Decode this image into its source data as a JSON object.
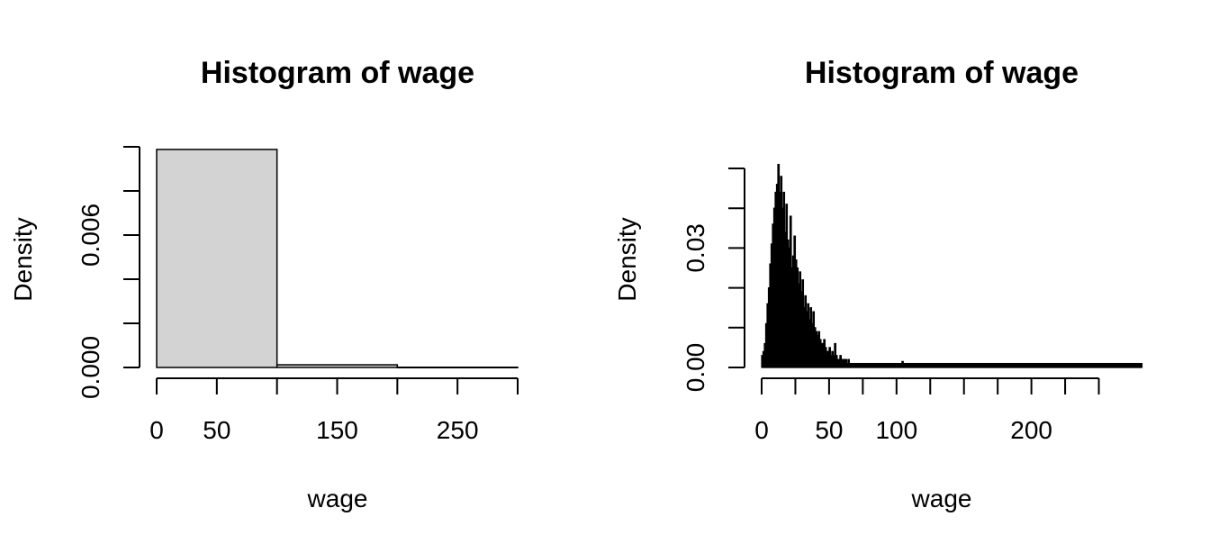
{
  "chart_data": [
    {
      "type": "bar",
      "title": "Histogram of wage",
      "xlabel": "wage",
      "ylabel": "Density",
      "xlim": [
        0,
        300
      ],
      "ylim": [
        0,
        0.01
      ],
      "x_ticks": [
        0,
        50,
        100,
        150,
        200,
        250,
        300
      ],
      "x_tick_labels": [
        "0",
        "50",
        "150",
        "250"
      ],
      "x_tick_labels_at": [
        0,
        50,
        150,
        250
      ],
      "y_ticks": [
        0,
        0.002,
        0.004,
        0.006,
        0.008,
        0.01
      ],
      "y_tick_labels": [
        "0.000",
        "0.006"
      ],
      "y_tick_labels_at": [
        0,
        0.006
      ],
      "bar_fill": "#d3d3d3",
      "bins": [
        {
          "from": 0,
          "to": 100,
          "density": 0.00988
        },
        {
          "from": 100,
          "to": 200,
          "density": 0.00012
        },
        {
          "from": 200,
          "to": 300,
          "density": 1e-05
        }
      ]
    },
    {
      "type": "bar",
      "title": "Histogram of wage",
      "xlabel": "wage",
      "ylabel": "Density",
      "xlim": [
        0,
        267
      ],
      "ylim": [
        0,
        0.05
      ],
      "x_ticks": [
        0,
        25,
        50,
        75,
        100,
        125,
        150,
        175,
        200,
        225,
        250
      ],
      "x_tick_labels": [
        "0",
        "50",
        "100",
        "200"
      ],
      "x_tick_labels_at": [
        0,
        50,
        100,
        200
      ],
      "y_ticks": [
        0,
        0.01,
        0.02,
        0.03,
        0.04,
        0.05
      ],
      "y_tick_labels": [
        "0.00",
        "0.03"
      ],
      "y_tick_labels_at": [
        0,
        0.03
      ],
      "bar_fill": "#000000",
      "bin_width": 1,
      "bins_start": 0,
      "densities": [
        0.003,
        0.004,
        0.006,
        0.011,
        0.016,
        0.02,
        0.026,
        0.031,
        0.036,
        0.04,
        0.044,
        0.046,
        0.051,
        0.044,
        0.048,
        0.04,
        0.044,
        0.034,
        0.041,
        0.032,
        0.03,
        0.038,
        0.025,
        0.028,
        0.033,
        0.027,
        0.025,
        0.021,
        0.024,
        0.019,
        0.022,
        0.015,
        0.018,
        0.014,
        0.016,
        0.012,
        0.015,
        0.011,
        0.014,
        0.01,
        0.009,
        0.008,
        0.009,
        0.007,
        0.006,
        0.006,
        0.007,
        0.005,
        0.004,
        0.004,
        0.005,
        0.003,
        0.004,
        0.003,
        0.006,
        0.003,
        0.002,
        0.002,
        0.003,
        0.002,
        0.002,
        0.002,
        0.002,
        0.001,
        0.002,
        0.001,
        0.001,
        0.001,
        0.001,
        0.001,
        0.001,
        0.001,
        0.001,
        0.001,
        0.001,
        0.001,
        0.001,
        0.001,
        0.001,
        0.001,
        0.001,
        0.001,
        0.001,
        0.001,
        0.001,
        0.001,
        0.001,
        0.001,
        0.001,
        0.001,
        0.001,
        0.001,
        0.001,
        0.001,
        0.001,
        0.001,
        0.001,
        0.001,
        0.001,
        0.001,
        0.001,
        0.001,
        0.001,
        0.001,
        0.0015,
        0.001,
        0.001,
        0.001,
        0.001,
        0.001,
        0.001,
        0.001,
        0.001,
        0.001,
        0.001,
        0.001,
        0.001,
        0.001,
        0.001,
        0.001,
        0.001,
        0.001,
        0.001,
        0.001,
        0.001,
        0.001,
        0.001,
        0.001,
        0.001,
        0.001,
        0.001,
        0.001,
        0.001,
        0.001,
        0.001,
        0.001,
        0.001,
        0.001,
        0.001,
        0.001,
        0.001,
        0.001,
        0.001,
        0.001,
        0.001,
        0.001,
        0.001,
        0.001,
        0.001,
        0.001,
        0.001,
        0.001,
        0.001,
        0.001,
        0.001,
        0.001,
        0.001,
        0.001,
        0.001,
        0.001,
        0.001,
        0.001,
        0.001,
        0.001,
        0.001,
        0.001,
        0.001,
        0.001,
        0.001,
        0.001,
        0.001,
        0.001,
        0.001,
        0.001,
        0.001,
        0.001,
        0.001,
        0.001,
        0.001,
        0.001,
        0.001,
        0.001,
        0.001,
        0.001,
        0.001,
        0.001,
        0.001,
        0.001,
        0.001,
        0.001,
        0.001,
        0.001,
        0.001,
        0.001,
        0.001,
        0.001,
        0.001,
        0.001,
        0.001,
        0.001,
        0.001,
        0.001,
        0.001,
        0.001,
        0.001,
        0.001,
        0.001,
        0.001,
        0.001,
        0.001,
        0.001,
        0.001,
        0.001,
        0.001,
        0.001,
        0.001,
        0.001,
        0.001,
        0.001,
        0.001,
        0.001,
        0.001,
        0.001,
        0.001,
        0.001,
        0.001,
        0.001,
        0.001,
        0.001,
        0.001,
        0.001,
        0.001,
        0.001,
        0.001,
        0.001,
        0.001,
        0.001,
        0.001,
        0.001,
        0.001,
        0.001,
        0.001,
        0.001,
        0.001,
        0.001,
        0.001,
        0.001,
        0.001,
        0.001,
        0.001,
        0.001,
        0.001,
        0.001,
        0.001,
        0.001,
        0.001,
        0.001,
        0.001,
        0.001,
        0.001,
        0.001,
        0.001,
        0.001,
        0.001,
        0.001,
        0.001,
        0.001,
        0.001,
        0.001,
        0.001,
        0.001,
        0.001,
        0.001,
        0.001,
        0.001,
        0.001,
        0.001,
        0.001,
        0.001,
        0.001,
        0.001,
        0.001
      ]
    }
  ]
}
